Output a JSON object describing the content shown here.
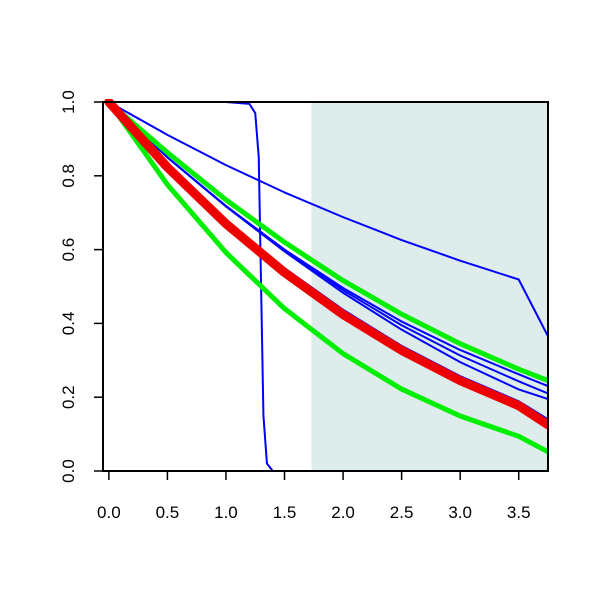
{
  "chart_data": {
    "type": "line",
    "title": "",
    "xlabel": "",
    "ylabel": "",
    "xlim": [
      -0.05,
      3.75
    ],
    "ylim": [
      0.0,
      1.0
    ],
    "x_ticks": [
      0.0,
      0.5,
      1.0,
      1.5,
      2.0,
      2.5,
      3.0,
      3.5
    ],
    "x_tick_labels": [
      "0.0",
      "0.5",
      "1.0",
      "1.5",
      "2.0",
      "2.5",
      "3.0",
      "3.5"
    ],
    "y_ticks": [
      0.0,
      0.2,
      0.4,
      0.6,
      0.8,
      1.0
    ],
    "y_tick_labels": [
      "0.0",
      "0.2",
      "0.4",
      "0.6",
      "0.8",
      "1.0"
    ],
    "grid": false,
    "legend": "none",
    "shaded_region": {
      "x_start": 1.73,
      "x_end": 3.75,
      "color": "#deecec"
    },
    "series": [
      {
        "color": "#0000ff",
        "style": "thin",
        "x": [
          0.0,
          1.0,
          1.2,
          1.25,
          1.28,
          1.3,
          1.32,
          1.35,
          1.4,
          3.75
        ],
        "y": [
          1.0,
          1.0,
          0.995,
          0.97,
          0.85,
          0.5,
          0.15,
          0.02,
          0.0,
          0.0
        ]
      },
      {
        "color": "#0000ff",
        "style": "thin",
        "x": [
          0.0,
          0.5,
          1.0,
          1.5,
          2.0,
          2.5,
          3.0,
          3.5,
          3.75
        ],
        "y": [
          1.0,
          0.911,
          0.829,
          0.755,
          0.688,
          0.626,
          0.57,
          0.519,
          0.365
        ]
      },
      {
        "color": "#0000ff",
        "style": "thin",
        "x": [
          0.0,
          0.5,
          1.0,
          1.5,
          2.0,
          2.5,
          3.0,
          3.5,
          3.75
        ],
        "y": [
          1.0,
          0.85,
          0.718,
          0.6,
          0.496,
          0.405,
          0.328,
          0.262,
          0.23
        ]
      },
      {
        "color": "#0000ff",
        "style": "thin",
        "x": [
          0.0,
          0.5,
          1.0,
          1.5,
          2.0,
          2.5,
          3.0,
          3.5,
          3.75
        ],
        "y": [
          1.0,
          0.85,
          0.718,
          0.598,
          0.49,
          0.395,
          0.313,
          0.243,
          0.21
        ]
      },
      {
        "color": "#0000ff",
        "style": "thin",
        "x": [
          0.0,
          0.5,
          1.0,
          1.5,
          2.0,
          2.5,
          3.0,
          3.5,
          3.75
        ],
        "y": [
          1.0,
          0.85,
          0.717,
          0.595,
          0.483,
          0.383,
          0.295,
          0.221,
          0.195
        ]
      },
      {
        "color": "#0000ff",
        "style": "thin",
        "x": [
          0.0,
          0.5,
          1.0,
          1.5,
          2.0,
          2.5,
          3.0,
          3.5,
          3.75
        ],
        "y": [
          1.0,
          0.83,
          0.68,
          0.55,
          0.437,
          0.339,
          0.257,
          0.189,
          0.14
        ]
      },
      {
        "color": "#00ee00",
        "style": "thick",
        "x": [
          0.0,
          0.5,
          1.0,
          1.5,
          2.0,
          2.5,
          3.0,
          3.5,
          3.75
        ],
        "y": [
          1.0,
          0.863,
          0.735,
          0.62,
          0.516,
          0.425,
          0.345,
          0.276,
          0.245
        ]
      },
      {
        "color": "#00ee00",
        "style": "thick",
        "x": [
          0.0,
          0.5,
          1.0,
          1.5,
          2.0,
          2.5,
          3.0,
          3.5,
          3.75
        ],
        "y": [
          1.0,
          0.776,
          0.592,
          0.44,
          0.318,
          0.222,
          0.149,
          0.094,
          0.052
        ]
      },
      {
        "color": "#ee0000",
        "style": "thickest",
        "x": [
          0.0,
          0.5,
          1.0,
          1.5,
          2.0,
          2.5,
          3.0,
          3.5,
          3.75
        ],
        "y": [
          1.0,
          0.823,
          0.67,
          0.538,
          0.424,
          0.327,
          0.245,
          0.177,
          0.125
        ]
      }
    ]
  }
}
